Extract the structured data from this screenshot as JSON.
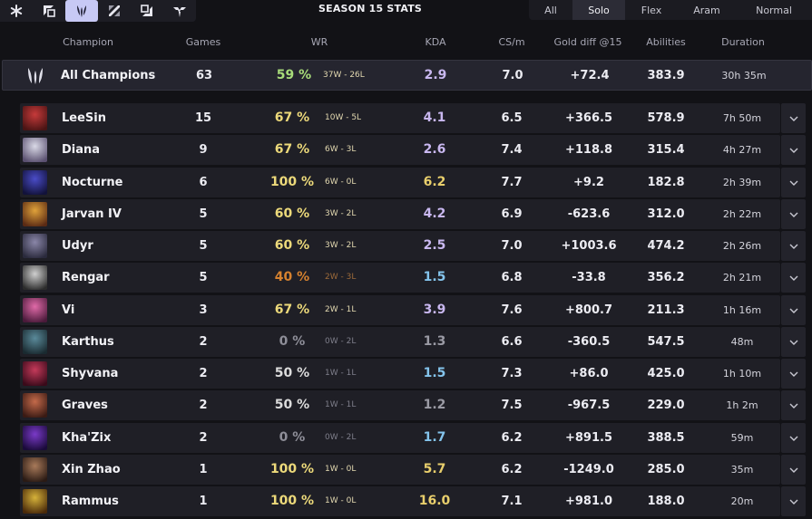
{
  "role_tabs": [
    {
      "icon": "all-roles-icon"
    },
    {
      "icon": "top-lane-icon"
    },
    {
      "icon": "jungle-icon",
      "active": true
    },
    {
      "icon": "mid-lane-icon"
    },
    {
      "icon": "bot-lane-icon"
    },
    {
      "icon": "support-icon"
    }
  ],
  "season_title": "SEASON 15 STATS",
  "queue_tabs": [
    "All",
    "Solo",
    "Flex",
    "Aram",
    "Normal"
  ],
  "active_queue": "Solo",
  "columns": {
    "champion": "Champion",
    "games": "Games",
    "wr": "WR",
    "kda": "KDA",
    "cs": "CS/m",
    "gold": "Gold diff @15",
    "abilities": "Abilities",
    "duration": "Duration"
  },
  "total": {
    "name": "All Champions",
    "games": "63",
    "wr": "59 %",
    "record": "37W - 26L",
    "kda": "2.9",
    "cs": "7.0",
    "gold": "+72.4",
    "abilities": "383.9",
    "duration": "30h 35m"
  },
  "champions": [
    {
      "name": "LeeSin",
      "games": "15",
      "wr": "67 %",
      "record": "10W - 5L",
      "kda": "4.1",
      "cs": "6.5",
      "gold": "+366.5",
      "abilities": "578.9",
      "duration": "7h 50m"
    },
    {
      "name": "Diana",
      "games": "9",
      "wr": "67 %",
      "record": "6W - 3L",
      "kda": "2.6",
      "cs": "7.4",
      "gold": "+118.8",
      "abilities": "315.4",
      "duration": "4h 27m"
    },
    {
      "name": "Nocturne",
      "games": "6",
      "wr": "100 %",
      "record": "6W - 0L",
      "kda": "6.2",
      "cs": "7.7",
      "gold": "+9.2",
      "abilities": "182.8",
      "duration": "2h 39m"
    },
    {
      "name": "Jarvan IV",
      "games": "5",
      "wr": "60 %",
      "record": "3W - 2L",
      "kda": "4.2",
      "cs": "6.9",
      "gold": "-623.6",
      "abilities": "312.0",
      "duration": "2h 22m"
    },
    {
      "name": "Udyr",
      "games": "5",
      "wr": "60 %",
      "record": "3W - 2L",
      "kda": "2.5",
      "cs": "7.0",
      "gold": "+1003.6",
      "abilities": "474.2",
      "duration": "2h 26m"
    },
    {
      "name": "Rengar",
      "games": "5",
      "wr": "40 %",
      "record": "2W - 3L",
      "kda": "1.5",
      "cs": "6.8",
      "gold": "-33.8",
      "abilities": "356.2",
      "duration": "2h 21m"
    },
    {
      "name": "Vi",
      "games": "3",
      "wr": "67 %",
      "record": "2W - 1L",
      "kda": "3.9",
      "cs": "7.6",
      "gold": "+800.7",
      "abilities": "211.3",
      "duration": "1h 16m"
    },
    {
      "name": "Karthus",
      "games": "2",
      "wr": "0 %",
      "record": "0W - 2L",
      "kda": "1.3",
      "cs": "6.6",
      "gold": "-360.5",
      "abilities": "547.5",
      "duration": "48m"
    },
    {
      "name": "Shyvana",
      "games": "2",
      "wr": "50 %",
      "record": "1W - 1L",
      "kda": "1.5",
      "cs": "7.3",
      "gold": "+86.0",
      "abilities": "425.0",
      "duration": "1h 10m"
    },
    {
      "name": "Graves",
      "games": "2",
      "wr": "50 %",
      "record": "1W - 1L",
      "kda": "1.2",
      "cs": "7.5",
      "gold": "-967.5",
      "abilities": "229.0",
      "duration": "1h 2m"
    },
    {
      "name": "Kha'Zix",
      "games": "2",
      "wr": "0 %",
      "record": "0W - 2L",
      "kda": "1.7",
      "cs": "6.2",
      "gold": "+891.5",
      "abilities": "388.5",
      "duration": "59m"
    },
    {
      "name": "Xin Zhao",
      "games": "1",
      "wr": "100 %",
      "record": "1W - 0L",
      "kda": "5.7",
      "cs": "6.2",
      "gold": "-1249.0",
      "abilities": "285.0",
      "duration": "35m"
    },
    {
      "name": "Rammus",
      "games": "1",
      "wr": "100 %",
      "record": "1W - 0L",
      "kda": "16.0",
      "cs": "7.1",
      "gold": "+981.0",
      "abilities": "188.0",
      "duration": "20m"
    }
  ],
  "colors": {
    "wr_high": "#ecd97a",
    "wr_good": "#dcdcdc",
    "wr_total": "#a8dc7a",
    "wr_low": "#d6822f",
    "wr_zero": "#8e8e98",
    "kda_gold": "#e9cf6c",
    "kda_purple": "#c9b8f0",
    "kda_blue": "#84c4ec",
    "kda_gray": "#9a9aa4",
    "accent": "#c7c9f5"
  },
  "portraits": [
    {
      "a": "#c63a3a",
      "b": "#4a1414"
    },
    {
      "a": "#d9d9e6",
      "b": "#5a5070"
    },
    {
      "a": "#4a4cc8",
      "b": "#12123a"
    },
    {
      "a": "#e0a23a",
      "b": "#5a2a14"
    },
    {
      "a": "#8a86a8",
      "b": "#2a2a3c"
    },
    {
      "a": "#cfcfcf",
      "b": "#2c2c2c"
    },
    {
      "a": "#e06aa8",
      "b": "#4a1a3a"
    },
    {
      "a": "#5a8a9a",
      "b": "#1a2a30"
    },
    {
      "a": "#c43a5a",
      "b": "#3a0a1a"
    },
    {
      "a": "#c46a4a",
      "b": "#3a1a14"
    },
    {
      "a": "#7a3ac8",
      "b": "#1a0a3a"
    },
    {
      "a": "#a87a5a",
      "b": "#2a1a14"
    },
    {
      "a": "#d6b23a",
      "b": "#4a2a0a"
    }
  ]
}
